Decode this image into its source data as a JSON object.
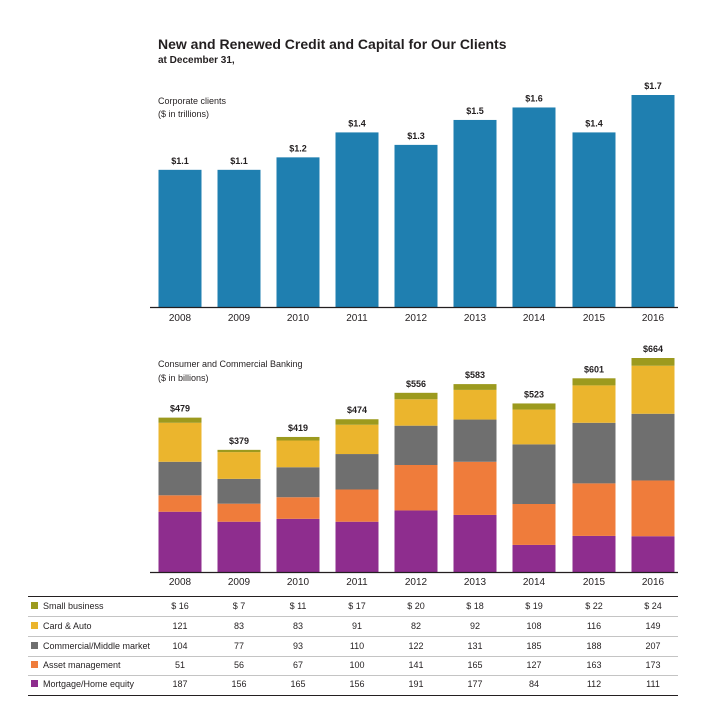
{
  "header": {
    "title": "New and Renewed Credit and Capital for Our Clients",
    "subtitle": "at December 31,"
  },
  "colors": {
    "corporate_bar": "#1f7fb0",
    "small_business": "#9c9a1e",
    "card_auto": "#ebb52d",
    "commercial": "#6f6f6f",
    "asset_management": "#ef7c3b",
    "mortgage": "#8e2d8e",
    "axis": "#231f20"
  },
  "chart_data": [
    {
      "type": "bar",
      "title": "Corporate clients",
      "unit_label": "($ in trillions)",
      "categories": [
        "2008",
        "2009",
        "2010",
        "2011",
        "2012",
        "2013",
        "2014",
        "2015",
        "2016"
      ],
      "values": [
        1.1,
        1.1,
        1.2,
        1.4,
        1.3,
        1.5,
        1.6,
        1.4,
        1.7
      ],
      "value_labels": [
        "$1.1",
        "$1.1",
        "$1.2",
        "$1.4",
        "$1.3",
        "$1.5",
        "$1.6",
        "$1.4",
        "$1.7"
      ],
      "ylim": [
        0,
        1.8
      ],
      "grid": false,
      "legend": "none"
    },
    {
      "type": "bar",
      "stacked": true,
      "title": "Consumer and Commercial Banking",
      "unit_label": "($ in billions)",
      "categories": [
        "2008",
        "2009",
        "2010",
        "2011",
        "2012",
        "2013",
        "2014",
        "2015",
        "2016"
      ],
      "totals": [
        479,
        379,
        419,
        474,
        556,
        583,
        523,
        601,
        664
      ],
      "total_labels": [
        "$479",
        "$379",
        "$419",
        "$474",
        "$556",
        "$583",
        "$523",
        "$601",
        "$664"
      ],
      "series": [
        {
          "name": "Mortgage/Home equity",
          "color_key": "mortgage",
          "values": [
            187,
            156,
            165,
            156,
            191,
            177,
            84,
            112,
            111
          ],
          "labels": [
            "187",
            "156",
            "165",
            "156",
            "191",
            "177",
            "84",
            "112",
            "111"
          ]
        },
        {
          "name": "Asset management",
          "color_key": "asset_management",
          "values": [
            51,
            56,
            67,
            100,
            141,
            165,
            127,
            163,
            173
          ],
          "labels": [
            "51",
            "56",
            "67",
            "100",
            "141",
            "165",
            "127",
            "163",
            "173"
          ]
        },
        {
          "name": "Commercial/Middle market",
          "color_key": "commercial",
          "values": [
            104,
            77,
            93,
            110,
            122,
            131,
            185,
            188,
            207
          ],
          "labels": [
            "104",
            "77",
            "93",
            "110",
            "122",
            "131",
            "185",
            "188",
            "207"
          ]
        },
        {
          "name": "Card & Auto",
          "color_key": "card_auto",
          "values": [
            121,
            83,
            83,
            91,
            82,
            92,
            108,
            116,
            149
          ],
          "labels": [
            "121",
            "83",
            "83",
            "91",
            "82",
            "92",
            "108",
            "116",
            "149"
          ]
        },
        {
          "name": "Small business",
          "color_key": "small_business",
          "values": [
            16,
            7,
            11,
            17,
            20,
            18,
            19,
            22,
            24
          ],
          "labels": [
            "$ 16",
            "$ 7",
            "$ 11",
            "$ 17",
            "$ 20",
            "$ 18",
            "$ 19",
            "$ 22",
            "$ 24"
          ]
        }
      ],
      "table_order": [
        "Small business",
        "Card & Auto",
        "Commercial/Middle market",
        "Asset management",
        "Mortgage/Home equity"
      ],
      "ylim": [
        0,
        700
      ],
      "grid": false,
      "legend": "bottom-table"
    }
  ]
}
